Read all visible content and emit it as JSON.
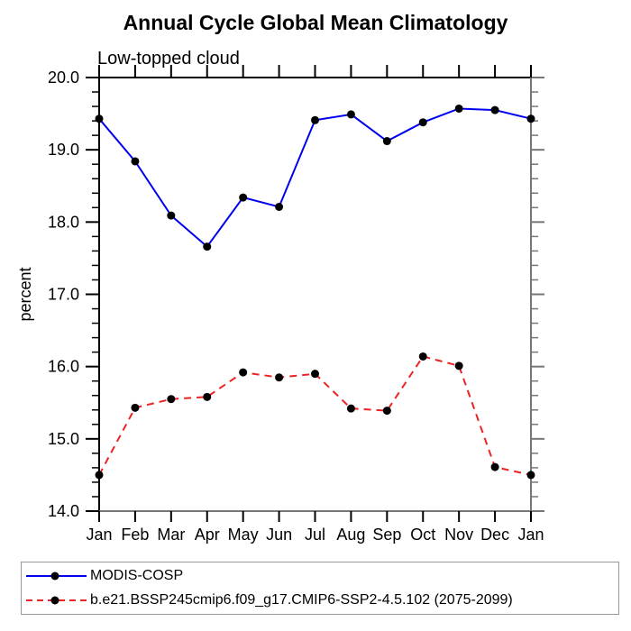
{
  "chart_data": {
    "type": "line",
    "title": "Annual Cycle Global Mean Climatology",
    "subtitle": "Low-topped cloud",
    "ylabel": "percent",
    "xlabel": "",
    "x_categories": [
      "Jan",
      "Feb",
      "Mar",
      "Apr",
      "May",
      "Jun",
      "Jul",
      "Aug",
      "Sep",
      "Oct",
      "Nov",
      "Dec",
      "Jan"
    ],
    "ylim": [
      14.0,
      20.0
    ],
    "y_major_step": 1.0,
    "y_minor_step": 0.2,
    "y_tick_labels": [
      "14.0",
      "15.0",
      "16.0",
      "17.0",
      "18.0",
      "19.0",
      "20.0"
    ],
    "grid": false,
    "legend_position": "bottom-left-box",
    "series": [
      {
        "name": "MODIS-COSP",
        "color": "#0000ee",
        "line_style": "solid",
        "marker": "circle",
        "marker_color": "#000000",
        "values": [
          19.43,
          18.84,
          18.09,
          17.66,
          18.34,
          18.21,
          19.41,
          19.49,
          19.12,
          19.38,
          19.57,
          19.55,
          19.43
        ]
      },
      {
        "name": "b.e21.BSSP245cmip6.f09_g17.CMIP6-SSP2-4.5.102 (2075-2099)",
        "color": "#ee2222",
        "line_style": "dashed",
        "marker": "circle",
        "marker_color": "#000000",
        "values": [
          14.5,
          15.43,
          15.55,
          15.58,
          15.92,
          15.85,
          15.9,
          15.42,
          15.39,
          16.14,
          16.01,
          14.61,
          14.5
        ]
      }
    ]
  },
  "colors": {
    "axis_primary": "#000000",
    "axis_secondary": "#777777",
    "legend_border": "#999999",
    "marker": "#000000"
  }
}
